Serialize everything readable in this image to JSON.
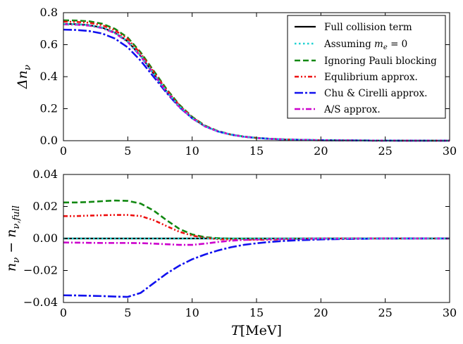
{
  "chart_data": [
    {
      "type": "line",
      "panel": "top",
      "ylabel": "Δn_ν",
      "ylabel_parts": {
        "base": "Δn",
        "sub": "ν"
      },
      "xlabel": "",
      "xlim": [
        0,
        30
      ],
      "ylim": [
        0,
        0.8
      ],
      "xticks": [
        0,
        5,
        10,
        15,
        20,
        25,
        30
      ],
      "yticks": [
        0.0,
        0.2,
        0.4,
        0.6,
        0.8
      ],
      "xtick_labels": [
        "0",
        "5",
        "10",
        "15",
        "20",
        "25",
        "30"
      ],
      "ytick_labels": [
        "0.0",
        "0.2",
        "0.4",
        "0.6",
        "0.8"
      ],
      "legend_location": "upper-right",
      "x": [
        0,
        1,
        2,
        3,
        4,
        5,
        6,
        7,
        8,
        9,
        10,
        11,
        12,
        13,
        14,
        15,
        16,
        17,
        18,
        19,
        20,
        22,
        24,
        26,
        28,
        30
      ],
      "series": [
        {
          "name": "Full collision term",
          "values": [
            0.73,
            0.728,
            0.722,
            0.707,
            0.675,
            0.62,
            0.53,
            0.42,
            0.31,
            0.215,
            0.142,
            0.09,
            0.058,
            0.038,
            0.025,
            0.017,
            0.012,
            0.008,
            0.006,
            0.004,
            0.003,
            0.002,
            0.001,
            0.0005,
            0.0002,
            0.0001
          ]
        },
        {
          "name": "Assuming m_e = 0",
          "values": [
            0.73,
            0.728,
            0.722,
            0.707,
            0.675,
            0.62,
            0.53,
            0.42,
            0.31,
            0.215,
            0.142,
            0.09,
            0.058,
            0.038,
            0.025,
            0.017,
            0.012,
            0.008,
            0.006,
            0.004,
            0.003,
            0.002,
            0.001,
            0.0005,
            0.0002,
            0.0001
          ]
        },
        {
          "name": "Ignoring Pauli blocking",
          "values": [
            0.752,
            0.751,
            0.746,
            0.731,
            0.699,
            0.644,
            0.552,
            0.438,
            0.324,
            0.225,
            0.149,
            0.094,
            0.06,
            0.039,
            0.026,
            0.0175,
            0.012,
            0.0082,
            0.006,
            0.004,
            0.003,
            0.002,
            0.001,
            0.0005,
            0.0002,
            0.0001
          ]
        },
        {
          "name": "Equlibrium approx.",
          "values": [
            0.744,
            0.742,
            0.737,
            0.722,
            0.69,
            0.635,
            0.544,
            0.431,
            0.318,
            0.221,
            0.146,
            0.092,
            0.059,
            0.038,
            0.025,
            0.017,
            0.012,
            0.008,
            0.006,
            0.004,
            0.003,
            0.002,
            0.001,
            0.0005,
            0.0002,
            0.0001
          ]
        },
        {
          "name": "Chu & Cirelli approx.",
          "values": [
            0.694,
            0.692,
            0.685,
            0.67,
            0.638,
            0.583,
            0.5,
            0.4,
            0.3,
            0.21,
            0.14,
            0.09,
            0.058,
            0.038,
            0.025,
            0.017,
            0.012,
            0.008,
            0.006,
            0.004,
            0.003,
            0.002,
            0.001,
            0.0005,
            0.0002,
            0.0001
          ]
        },
        {
          "name": "A/S approx.",
          "values": [
            0.727,
            0.725,
            0.719,
            0.704,
            0.672,
            0.617,
            0.527,
            0.417,
            0.307,
            0.212,
            0.14,
            0.089,
            0.058,
            0.038,
            0.025,
            0.017,
            0.012,
            0.008,
            0.006,
            0.004,
            0.003,
            0.002,
            0.001,
            0.0005,
            0.0002,
            0.0001
          ]
        }
      ]
    },
    {
      "type": "line",
      "panel": "bottom",
      "xlabel": "T[MeV]",
      "xlabel_parts": {
        "symbol": "T",
        "rest": "[MeV]"
      },
      "ylabel": "n_ν − n_ν,full",
      "ylabel_parts": {
        "a": "n",
        "a_sub": "ν",
        "op": " − ",
        "b": "n",
        "b_sub": "ν,full"
      },
      "xlim": [
        0,
        30
      ],
      "ylim": [
        -0.04,
        0.04
      ],
      "xticks": [
        0,
        5,
        10,
        15,
        20,
        25,
        30
      ],
      "yticks": [
        -0.04,
        -0.02,
        0.0,
        0.02,
        0.04
      ],
      "xtick_labels": [
        "0",
        "5",
        "10",
        "15",
        "20",
        "25",
        "30"
      ],
      "ytick_labels": [
        "−0.04",
        "−0.02",
        "0.00",
        "0.02",
        "0.04"
      ],
      "x": [
        0,
        1,
        2,
        3,
        4,
        5,
        6,
        7,
        8,
        9,
        10,
        11,
        12,
        13,
        14,
        15,
        16,
        17,
        18,
        19,
        20,
        22,
        24,
        26,
        28,
        30
      ],
      "series": [
        {
          "name": "Full collision term",
          "values": [
            0,
            0,
            0,
            0,
            0,
            0,
            0,
            0,
            0,
            0,
            0,
            0,
            0,
            0,
            0,
            0,
            0,
            0,
            0,
            0,
            0,
            0,
            0,
            0,
            0,
            0
          ]
        },
        {
          "name": "Assuming m_e = 0",
          "values": [
            0.0,
            0.0,
            0.0,
            0.0,
            0.0,
            0.0,
            0.0,
            0.0,
            0.0,
            0.0,
            0.0,
            0.0,
            0.0,
            0.0,
            0.0,
            0.0,
            0.0,
            0.0,
            0.0,
            0.0,
            0.0,
            0.0,
            0.0,
            0.0,
            0.0,
            0.0
          ]
        },
        {
          "name": "Ignoring Pauli blocking",
          "values": [
            0.0225,
            0.0225,
            0.0228,
            0.0233,
            0.0237,
            0.0235,
            0.0218,
            0.0175,
            0.0115,
            0.006,
            0.0025,
            0.0008,
            0.0002,
            -0.0001,
            -0.0002,
            -0.0002,
            -0.0002,
            -0.0001,
            -0.0001,
            0.0,
            0.0,
            0.0,
            0.0,
            0.0,
            0.0,
            0.0
          ]
        },
        {
          "name": "Equlibrium approx.",
          "values": [
            0.014,
            0.014,
            0.0143,
            0.0145,
            0.0147,
            0.0147,
            0.014,
            0.0115,
            0.0078,
            0.0042,
            0.0018,
            0.0004,
            -0.0004,
            -0.0007,
            -0.0008,
            -0.0008,
            -0.0007,
            -0.0005,
            -0.0003,
            -0.0002,
            -0.0001,
            0.0,
            0.0,
            0.0,
            0.0,
            0.0
          ]
        },
        {
          "name": "Chu & Cirelli approx.",
          "values": [
            -0.0355,
            -0.0356,
            -0.0358,
            -0.036,
            -0.0363,
            -0.0365,
            -0.034,
            -0.028,
            -0.022,
            -0.017,
            -0.013,
            -0.01,
            -0.0075,
            -0.0055,
            -0.004,
            -0.003,
            -0.0022,
            -0.0016,
            -0.0012,
            -0.0009,
            -0.0006,
            -0.0003,
            -0.0001,
            0.0,
            0.0,
            0.0
          ]
        },
        {
          "name": "A/S approx.",
          "values": [
            -0.0025,
            -0.0026,
            -0.0027,
            -0.0028,
            -0.0028,
            -0.0028,
            -0.0029,
            -0.0032,
            -0.0036,
            -0.004,
            -0.004,
            -0.0032,
            -0.0022,
            -0.0014,
            -0.0009,
            -0.0006,
            -0.0004,
            -0.0003,
            -0.0002,
            -0.0001,
            0.0,
            0.0,
            0.0,
            0.0,
            0.0,
            0.0
          ]
        }
      ]
    }
  ],
  "legend": {
    "entries": [
      {
        "label": "Full collision term",
        "color": "#000000",
        "style": "solid"
      },
      {
        "label_text": "Assuming ",
        "label_math": "m",
        "label_sub": "e",
        "label_tail": " = 0",
        "color": "#1fd1d1",
        "style": "dotted"
      },
      {
        "label": "Ignoring Pauli blocking",
        "color": "#118811",
        "style": "dashed"
      },
      {
        "label": "Equlibrium approx.",
        "color": "#ee1111",
        "style": "dashdotdot"
      },
      {
        "label": "Chu & Cirelli approx.",
        "color": "#1111ee",
        "style": "longdashdot"
      },
      {
        "label": "A/S approx.",
        "color": "#cc00cc",
        "style": "dashdot"
      }
    ]
  }
}
